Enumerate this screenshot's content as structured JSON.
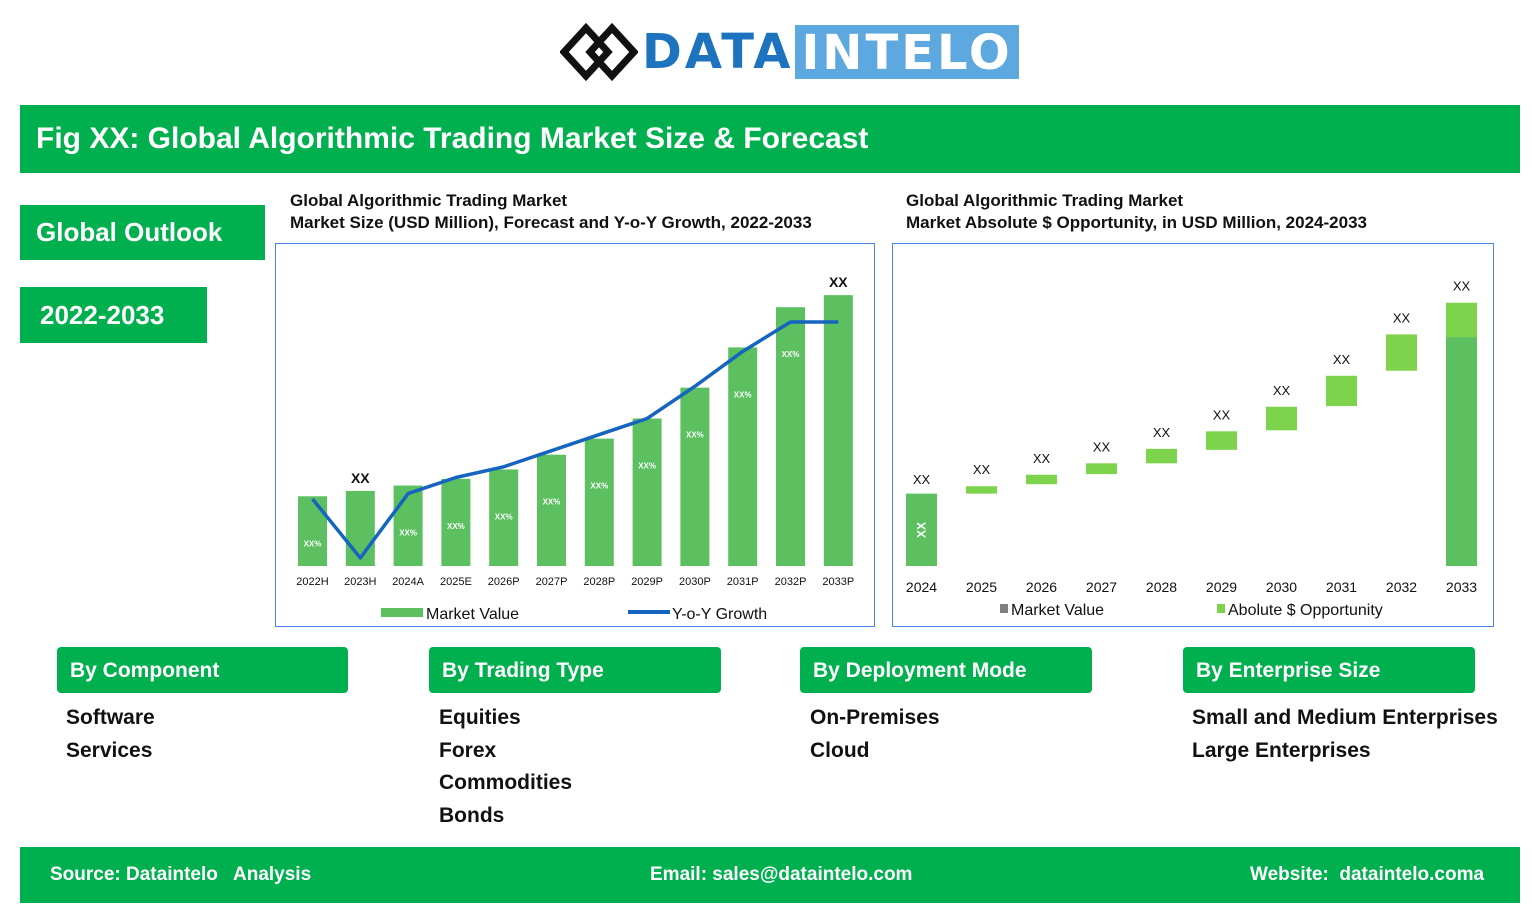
{
  "logo": {
    "part1": "DATA",
    "part2": "INTELO"
  },
  "title": "Fig XX: Global Algorithmic Trading Market Size & Forecast",
  "sidebar": {
    "outlook": "Global Outlook",
    "years": "2022-2033"
  },
  "colors": {
    "green": "#00b04f",
    "bar_green": "#5cbf60",
    "opportunity_green": "#7dd34c",
    "line_blue": "#1565c0",
    "frame_blue": "#4a86e8",
    "legend_grey": "#7f7f7f"
  },
  "chart_data": [
    {
      "type": "bar",
      "title": "Global Algorithmic Trading Market",
      "subtitle": "Market Size (USD Million), Forecast and Y-o-Y Growth, 2022-2033",
      "categories": [
        "2022H",
        "2023H",
        "2024A",
        "2025E",
        "2026P",
        "2027P",
        "2028P",
        "2029P",
        "2030P",
        "2031P",
        "2032P",
        "2033P"
      ],
      "series": [
        {
          "name": "Market Value",
          "type": "bar",
          "values": [
            26,
            28,
            30,
            32.5,
            36,
            41.5,
            47.5,
            55,
            66.5,
            81.5,
            96.5,
            101
          ]
        },
        {
          "name": "Y-o-Y Growth",
          "type": "line",
          "values": [
            25,
            3,
            27,
            33,
            37,
            43,
            49,
            55,
            67,
            80,
            91,
            91
          ]
        }
      ],
      "bar_labels": [
        "XX%",
        "XX",
        "XX%",
        "XX%",
        "XX%",
        "XX%",
        "XX%",
        "XX%",
        "XX%",
        "XX%",
        "XX%",
        "XX"
      ],
      "ylim": [
        0,
        110
      ],
      "grid": false,
      "legend": "bottom"
    },
    {
      "type": "bar",
      "title": "Global Algorithmic Trading Market",
      "subtitle": "Market Absolute $ Opportunity, in USD Million, 2024-2033",
      "categories": [
        "2024",
        "2025",
        "2026",
        "2027",
        "2028",
        "2029",
        "2030",
        "2031",
        "2032",
        "2033"
      ],
      "series": [
        {
          "name": "Market Value",
          "base": [
            0,
            21.5,
            24.3,
            27.3,
            30.5,
            34.5,
            40.3,
            47.5,
            58,
            0
          ],
          "values": [
            21.5,
            0,
            0,
            0,
            0,
            0,
            0,
            0,
            0,
            68
          ]
        },
        {
          "name": "Abolute $ Opportunity",
          "values": [
            0,
            2.2,
            2.8,
            3.2,
            4.3,
            5.5,
            7.0,
            9.0,
            10.8,
            10.2
          ]
        }
      ],
      "bar_labels": [
        "XX",
        "XX",
        "XX",
        "XX",
        "XX",
        "XX",
        "XX",
        "XX",
        "XX",
        "XX"
      ],
      "ylim": [
        0,
        90
      ],
      "grid": false,
      "legend": "bottom"
    }
  ],
  "segments": [
    {
      "title": "By Component",
      "items": [
        "Software",
        "Services"
      ]
    },
    {
      "title": "By Trading Type",
      "items": [
        "Equities",
        "Forex",
        "Commodities",
        "Bonds"
      ]
    },
    {
      "title": "By Deployment Mode",
      "items": [
        "On-Premises",
        "Cloud"
      ]
    },
    {
      "title": "By Enterprise Size",
      "items": [
        "Small and Medium Enterprises",
        "Large Enterprises"
      ]
    }
  ],
  "footer": {
    "source": "Source: Dataintelo   Analysis",
    "email": "Email: sales@dataintelo.com",
    "website": "Website:  dataintelo.coma"
  }
}
